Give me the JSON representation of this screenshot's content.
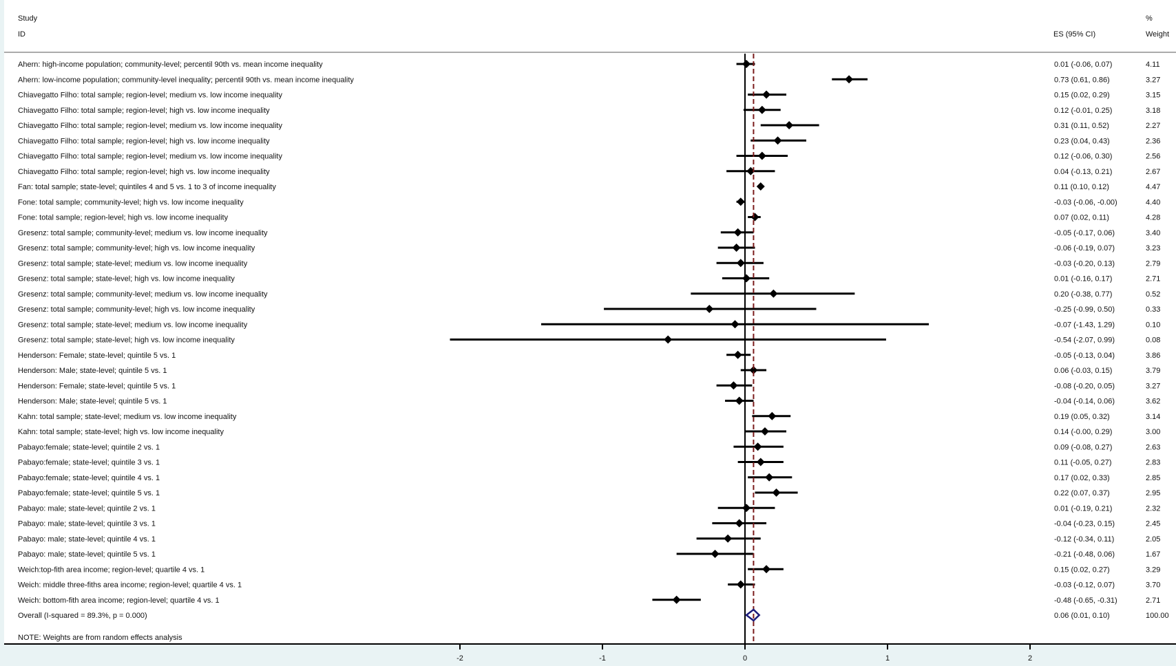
{
  "chart_data": {
    "type": "forest",
    "header": {
      "study_label": "Study",
      "id_label": "ID",
      "es_label": "ES (95% CI)",
      "pct_label": "%",
      "weight_label": "Weight"
    },
    "xlim": [
      -2.25,
      3.0
    ],
    "x_ticks": [
      {
        "value": -2,
        "label": "-2"
      },
      {
        "value": -1,
        "label": "-1"
      },
      {
        "value": 0,
        "label": "0"
      },
      {
        "value": 1,
        "label": "1"
      },
      {
        "value": 2,
        "label": "2"
      }
    ],
    "studies": [
      {
        "label": "Ahern: high-income population; community-level; percentil 90th vs. mean income inequality",
        "es": 0.01,
        "lo": -0.06,
        "hi": 0.07,
        "ci_text": "0.01 (-0.06, 0.07)",
        "weight": 4.11,
        "weight_text": "4.11"
      },
      {
        "label": "Ahern: low-income population; community-level inequality; percentil 90th vs. mean income inequality",
        "es": 0.73,
        "lo": 0.61,
        "hi": 0.86,
        "ci_text": "0.73 (0.61, 0.86)",
        "weight": 3.27,
        "weight_text": "3.27"
      },
      {
        "label": "Chiavegatto Filho: total sample; region-level; medium vs. low income inequality",
        "es": 0.15,
        "lo": 0.02,
        "hi": 0.29,
        "ci_text": "0.15 (0.02, 0.29)",
        "weight": 3.15,
        "weight_text": "3.15"
      },
      {
        "label": "Chiavegatto Filho: total sample; region-level; high vs. low income inequality",
        "es": 0.12,
        "lo": -0.01,
        "hi": 0.25,
        "ci_text": "0.12 (-0.01, 0.25)",
        "weight": 3.18,
        "weight_text": "3.18"
      },
      {
        "label": "Chiavegatto Filho: total sample; region-level; medium vs. low income inequality",
        "es": 0.31,
        "lo": 0.11,
        "hi": 0.52,
        "ci_text": "0.31 (0.11, 0.52)",
        "weight": 2.27,
        "weight_text": "2.27"
      },
      {
        "label": "Chiavegatto Filho: total sample; region-level; high vs. low income inequality",
        "es": 0.23,
        "lo": 0.04,
        "hi": 0.43,
        "ci_text": "0.23 (0.04, 0.43)",
        "weight": 2.36,
        "weight_text": "2.36"
      },
      {
        "label": "Chiavegatto Filho: total sample; region-level; medium vs. low income inequality",
        "es": 0.12,
        "lo": -0.06,
        "hi": 0.3,
        "ci_text": "0.12 (-0.06, 0.30)",
        "weight": 2.56,
        "weight_text": "2.56"
      },
      {
        "label": "Chiavegatto Filho: total sample; region-level; high vs. low income inequality",
        "es": 0.04,
        "lo": -0.13,
        "hi": 0.21,
        "ci_text": "0.04 (-0.13, 0.21)",
        "weight": 2.67,
        "weight_text": "2.67"
      },
      {
        "label": "Fan: total sample; state-level; quintiles 4 and 5 vs. 1 to 3 of income inequality",
        "es": 0.11,
        "lo": 0.1,
        "hi": 0.12,
        "ci_text": "0.11 (0.10, 0.12)",
        "weight": 4.47,
        "weight_text": "4.47"
      },
      {
        "label": "Fone: total sample; community-level; high vs. low income inequality",
        "es": -0.03,
        "lo": -0.06,
        "hi": -0.0,
        "ci_text": "-0.03 (-0.06, -0.00)",
        "weight": 4.4,
        "weight_text": "4.40"
      },
      {
        "label": "Fone: total sample; region-level; high vs. low income inequality",
        "es": 0.07,
        "lo": 0.02,
        "hi": 0.11,
        "ci_text": "0.07 (0.02, 0.11)",
        "weight": 4.28,
        "weight_text": "4.28"
      },
      {
        "label": "Gresenz: total sample; community-level; medium vs. low income inequality",
        "es": -0.05,
        "lo": -0.17,
        "hi": 0.06,
        "ci_text": "-0.05 (-0.17, 0.06)",
        "weight": 3.4,
        "weight_text": "3.40"
      },
      {
        "label": "Gresenz: total sample; community-level; high vs. low income inequality",
        "es": -0.06,
        "lo": -0.19,
        "hi": 0.07,
        "ci_text": "-0.06 (-0.19, 0.07)",
        "weight": 3.23,
        "weight_text": "3.23"
      },
      {
        "label": "Gresenz: total sample; state-level; medium vs. low income inequality",
        "es": -0.03,
        "lo": -0.2,
        "hi": 0.13,
        "ci_text": "-0.03 (-0.20, 0.13)",
        "weight": 2.79,
        "weight_text": "2.79"
      },
      {
        "label": "Gresenz: total sample; state-level; high vs. low income inequality",
        "es": 0.01,
        "lo": -0.16,
        "hi": 0.17,
        "ci_text": "0.01 (-0.16, 0.17)",
        "weight": 2.71,
        "weight_text": "2.71"
      },
      {
        "label": "Gresenz: total sample; community-level; medium vs. low income inequality",
        "es": 0.2,
        "lo": -0.38,
        "hi": 0.77,
        "ci_text": "0.20 (-0.38, 0.77)",
        "weight": 0.52,
        "weight_text": "0.52"
      },
      {
        "label": "Gresenz: total sample; community-level; high vs. low income inequality",
        "es": -0.25,
        "lo": -0.99,
        "hi": 0.5,
        "ci_text": "-0.25 (-0.99, 0.50)",
        "weight": 0.33,
        "weight_text": "0.33"
      },
      {
        "label": "Gresenz: total sample; state-level; medium vs. low income inequality",
        "es": -0.07,
        "lo": -1.43,
        "hi": 1.29,
        "ci_text": "-0.07 (-1.43, 1.29)",
        "weight": 0.1,
        "weight_text": "0.10"
      },
      {
        "label": "Gresenz: total sample; state-level; high vs. low income inequality",
        "es": -0.54,
        "lo": -2.07,
        "hi": 0.99,
        "ci_text": "-0.54 (-2.07, 0.99)",
        "weight": 0.08,
        "weight_text": "0.08"
      },
      {
        "label": "Henderson: Female; state-level; quintile 5 vs. 1",
        "es": -0.05,
        "lo": -0.13,
        "hi": 0.04,
        "ci_text": "-0.05 (-0.13, 0.04)",
        "weight": 3.86,
        "weight_text": "3.86"
      },
      {
        "label": "Henderson: Male; state-level; quintile 5 vs. 1",
        "es": 0.06,
        "lo": -0.03,
        "hi": 0.15,
        "ci_text": "0.06 (-0.03, 0.15)",
        "weight": 3.79,
        "weight_text": "3.79"
      },
      {
        "label": "Henderson: Female; state-level; quintile 5 vs. 1",
        "es": -0.08,
        "lo": -0.2,
        "hi": 0.05,
        "ci_text": "-0.08 (-0.20, 0.05)",
        "weight": 3.27,
        "weight_text": "3.27"
      },
      {
        "label": "Henderson: Male; state-level; quintile 5 vs. 1",
        "es": -0.04,
        "lo": -0.14,
        "hi": 0.06,
        "ci_text": "-0.04 (-0.14, 0.06)",
        "weight": 3.62,
        "weight_text": "3.62"
      },
      {
        "label": "Kahn: total sample; state-level; medium vs. low income inequality",
        "es": 0.19,
        "lo": 0.05,
        "hi": 0.32,
        "ci_text": "0.19 (0.05, 0.32)",
        "weight": 3.14,
        "weight_text": "3.14"
      },
      {
        "label": "Kahn: total sample; state-level; high vs. low income inequality",
        "es": 0.14,
        "lo": -0.0,
        "hi": 0.29,
        "ci_text": "0.14 (-0.00, 0.29)",
        "weight": 3.0,
        "weight_text": "3.00"
      },
      {
        "label": "Pabayo:female; state-level; quintile 2 vs. 1",
        "es": 0.09,
        "lo": -0.08,
        "hi": 0.27,
        "ci_text": "0.09 (-0.08, 0.27)",
        "weight": 2.63,
        "weight_text": "2.63"
      },
      {
        "label": "Pabayo:female; state-level; quintile 3 vs. 1",
        "es": 0.11,
        "lo": -0.05,
        "hi": 0.27,
        "ci_text": "0.11 (-0.05, 0.27)",
        "weight": 2.83,
        "weight_text": "2.83"
      },
      {
        "label": "Pabayo:female; state-level; quintile 4 vs. 1",
        "es": 0.17,
        "lo": 0.02,
        "hi": 0.33,
        "ci_text": "0.17 (0.02, 0.33)",
        "weight": 2.85,
        "weight_text": "2.85"
      },
      {
        "label": "Pabayo:female; state-level; quintile 5 vs. 1",
        "es": 0.22,
        "lo": 0.07,
        "hi": 0.37,
        "ci_text": "0.22 (0.07, 0.37)",
        "weight": 2.95,
        "weight_text": "2.95"
      },
      {
        "label": "Pabayo: male; state-level; quintile 2 vs. 1",
        "es": 0.01,
        "lo": -0.19,
        "hi": 0.21,
        "ci_text": "0.01 (-0.19, 0.21)",
        "weight": 2.32,
        "weight_text": "2.32"
      },
      {
        "label": "Pabayo: male; state-level; quintile 3 vs. 1",
        "es": -0.04,
        "lo": -0.23,
        "hi": 0.15,
        "ci_text": "-0.04 (-0.23, 0.15)",
        "weight": 2.45,
        "weight_text": "2.45"
      },
      {
        "label": "Pabayo: male; state-level; quintile 4 vs. 1",
        "es": -0.12,
        "lo": -0.34,
        "hi": 0.11,
        "ci_text": "-0.12 (-0.34, 0.11)",
        "weight": 2.05,
        "weight_text": "2.05"
      },
      {
        "label": "Pabayo: male; state-level; quintile 5 vs. 1",
        "es": -0.21,
        "lo": -0.48,
        "hi": 0.06,
        "ci_text": "-0.21 (-0.48, 0.06)",
        "weight": 1.67,
        "weight_text": "1.67"
      },
      {
        "label": "Weich:top-fith area income; region-level; quartile 4 vs. 1",
        "es": 0.15,
        "lo": 0.02,
        "hi": 0.27,
        "ci_text": "0.15 (0.02, 0.27)",
        "weight": 3.29,
        "weight_text": "3.29"
      },
      {
        "label": "Weich: middle three-fiths area income; region-level; quartile 4 vs. 1",
        "es": -0.03,
        "lo": -0.12,
        "hi": 0.07,
        "ci_text": "-0.03 (-0.12, 0.07)",
        "weight": 3.7,
        "weight_text": "3.70"
      },
      {
        "label": "Weich: bottom-fith area income; region-level; quartile 4 vs. 1",
        "es": -0.48,
        "lo": -0.65,
        "hi": -0.31,
        "ci_text": "-0.48 (-0.65, -0.31)",
        "weight": 2.71,
        "weight_text": "2.71"
      }
    ],
    "overall": {
      "label": "Overall  (I-squared = 89.3%, p = 0.000)",
      "es": 0.06,
      "lo": 0.01,
      "hi": 0.1,
      "ci_text": "0.06 (0.01, 0.10)",
      "weight_text": "100.00"
    },
    "note": "NOTE: Weights are from random effects analysis",
    "colors": {
      "background": "#e9f3f4",
      "plot_background": "#ffffff",
      "marker": "#000000",
      "overall_diamond": "#1a1a7a",
      "reference_line": "#7a1a1a"
    }
  }
}
